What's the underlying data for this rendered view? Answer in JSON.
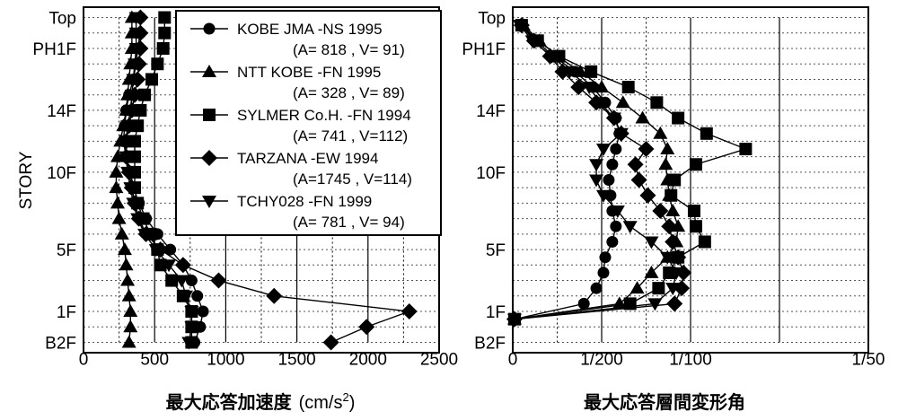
{
  "chart_data": [
    {
      "type": "line",
      "title": "",
      "xlabel_text": "最大応答加速度",
      "xlabel_unit": "(cm/s",
      "xlabel_sup": "2",
      "xlabel_close": ")",
      "ylabel": "STORY",
      "xlim": [
        0,
        2500
      ],
      "x_ticks": [
        "0",
        "500",
        "1000",
        "1500",
        "2000",
        "2500"
      ],
      "ylim": [
        0,
        21
      ],
      "y_tick_labels": [
        {
          "label": "B2F",
          "level": 0
        },
        {
          "label": "1F",
          "level": 2
        },
        {
          "label": "5F",
          "level": 6
        },
        {
          "label": "10F",
          "level": 11
        },
        {
          "label": "14F",
          "level": 15
        },
        {
          "label": "PH1F",
          "level": 19
        },
        {
          "label": "Top",
          "level": 21
        }
      ],
      "legend_position": "top-right",
      "series": [
        {
          "name": "KOBE JMA -NS 1995",
          "note": "(A=  818 , V=  91)",
          "marker": "circle",
          "x": [
            780,
            820,
            840,
            800,
            760,
            700,
            610,
            520,
            440,
            390,
            350,
            330,
            300,
            280,
            290,
            300,
            320,
            350,
            370,
            380,
            400,
            400
          ]
        },
        {
          "name": "NTT KOBE -FN 1995",
          "note": "(A=  328 , V=  89)",
          "marker": "triangle",
          "x": [
            320,
            330,
            330,
            320,
            310,
            300,
            290,
            270,
            250,
            240,
            230,
            230,
            240,
            260,
            280,
            300,
            310,
            320,
            330,
            340,
            340,
            340
          ]
        },
        {
          "name": "SYLMER Co.H. -FN 1994",
          "note": "(A=  741 , V=112)",
          "marker": "square",
          "x": [
            760,
            760,
            760,
            700,
            620,
            540,
            520,
            470,
            420,
            380,
            360,
            360,
            360,
            360,
            380,
            400,
            430,
            480,
            520,
            560,
            570,
            570
          ]
        },
        {
          "name": "TARZANA -EW 1994",
          "note": "(A=1745 , V=114)",
          "marker": "diamond",
          "x": [
            1740,
            1990,
            2290,
            1340,
            950,
            700,
            540,
            440,
            390,
            360,
            340,
            320,
            300,
            300,
            320,
            340,
            360,
            380,
            390,
            400,
            400,
            400
          ]
        },
        {
          "name": "TCHY028 -FN 1999",
          "note": "(A=  781 , V=  94)",
          "marker": "tridown",
          "x": [
            740,
            760,
            760,
            720,
            690,
            600,
            510,
            430,
            380,
            350,
            330,
            310,
            300,
            300,
            310,
            330,
            340,
            350,
            360,
            370,
            370,
            370
          ]
        }
      ]
    },
    {
      "type": "line",
      "title": "",
      "xlabel_text": "最大応答層間変形角",
      "ylabel": "",
      "xlim": [
        0,
        0.02
      ],
      "x_ticks": [
        "0",
        "1/200",
        "1/100",
        "1/50"
      ],
      "ylim": [
        0,
        21
      ],
      "y_tick_labels": [
        {
          "label": "B2F",
          "level": 0
        },
        {
          "label": "1F",
          "level": 2
        },
        {
          "label": "5F",
          "level": 6
        },
        {
          "label": "10F",
          "level": 11
        },
        {
          "label": "14F",
          "level": 15
        },
        {
          "label": "PH1F",
          "level": 19
        },
        {
          "label": "Top",
          "level": 21
        }
      ],
      "series": [
        {
          "name": "KOBE JMA -NS 1995",
          "marker": "circle",
          "y": [
            1.5,
            2.5,
            3.5,
            4.5,
            5.5,
            6.5,
            7.5,
            8.5,
            9.5,
            10.5,
            11.5,
            12.5,
            13.5,
            14.5,
            15.5,
            16.5,
            17.5,
            18.5,
            19.5,
            20.5
          ],
          "x": [
            0.0001,
            0.004,
            0.0047,
            0.0051,
            0.0052,
            0.0056,
            0.0058,
            0.0056,
            0.0055,
            0.0054,
            0.0056,
            0.0058,
            0.006,
            0.0058,
            0.0052,
            0.0045,
            0.0035,
            0.0023,
            0.0013,
            0.0005
          ]
        },
        {
          "name": "NTT KOBE -FN 1995",
          "marker": "triangle",
          "y": [
            1.5,
            2.5,
            3.5,
            4.5,
            5.5,
            6.5,
            7.5,
            8.5,
            9.5,
            10.5,
            11.5,
            12.5,
            13.5,
            14.5,
            15.5,
            16.5,
            17.5,
            18.5,
            19.5,
            20.5
          ],
          "x": [
            0.0001,
            0.006,
            0.007,
            0.0078,
            0.0087,
            0.0092,
            0.0093,
            0.009,
            0.0088,
            0.0087,
            0.0086,
            0.0087,
            0.0083,
            0.0073,
            0.0062,
            0.005,
            0.0038,
            0.0025,
            0.0015,
            0.0006
          ]
        },
        {
          "name": "SYLMER Co.H. -FN 1994",
          "marker": "square",
          "y": [
            1.5,
            2.5,
            3.5,
            4.5,
            5.5,
            6.5,
            7.5,
            8.5,
            9.5,
            10.5,
            11.5,
            12.5,
            13.5,
            14.5,
            15.5,
            16.5,
            17.5,
            18.5,
            19.5,
            20.5
          ],
          "x": [
            0.0001,
            0.0066,
            0.0082,
            0.0088,
            0.0093,
            0.0108,
            0.0103,
            0.0102,
            0.0089,
            0.0091,
            0.0103,
            0.0131,
            0.0109,
            0.0093,
            0.0081,
            0.0065,
            0.0044,
            0.0026,
            0.0014,
            0.0005
          ]
        },
        {
          "name": "TARZANA -EW 1994",
          "marker": "diamond",
          "y": [
            1.5,
            2.5,
            3.5,
            4.5,
            5.5,
            6.5,
            7.5,
            8.5,
            9.5,
            10.5,
            11.5,
            12.5,
            13.5,
            14.5,
            15.5,
            16.5,
            17.5,
            18.5,
            19.5,
            20.5
          ],
          "x": [
            0.0001,
            0.0091,
            0.0095,
            0.0096,
            0.0093,
            0.009,
            0.0088,
            0.0083,
            0.0076,
            0.0071,
            0.0069,
            0.0075,
            0.0061,
            0.0057,
            0.0047,
            0.0037,
            0.0028,
            0.0021,
            0.0012,
            0.0005
          ]
        },
        {
          "name": "TCHY028 -FN 1999",
          "marker": "tridown",
          "y": [
            1.5,
            2.5,
            3.5,
            4.5,
            5.5,
            6.5,
            7.5,
            8.5,
            9.5,
            10.5,
            11.5,
            12.5,
            13.5,
            14.5,
            15.5,
            16.5,
            17.5,
            18.5,
            19.5,
            20.5
          ],
          "x": [
            0.0001,
            0.008,
            0.009,
            0.0092,
            0.0087,
            0.0078,
            0.0066,
            0.0059,
            0.0051,
            0.0047,
            0.0047,
            0.0051,
            0.0061,
            0.0057,
            0.0049,
            0.0043,
            0.0032,
            0.0022,
            0.0011,
            0.0004
          ]
        }
      ]
    }
  ]
}
